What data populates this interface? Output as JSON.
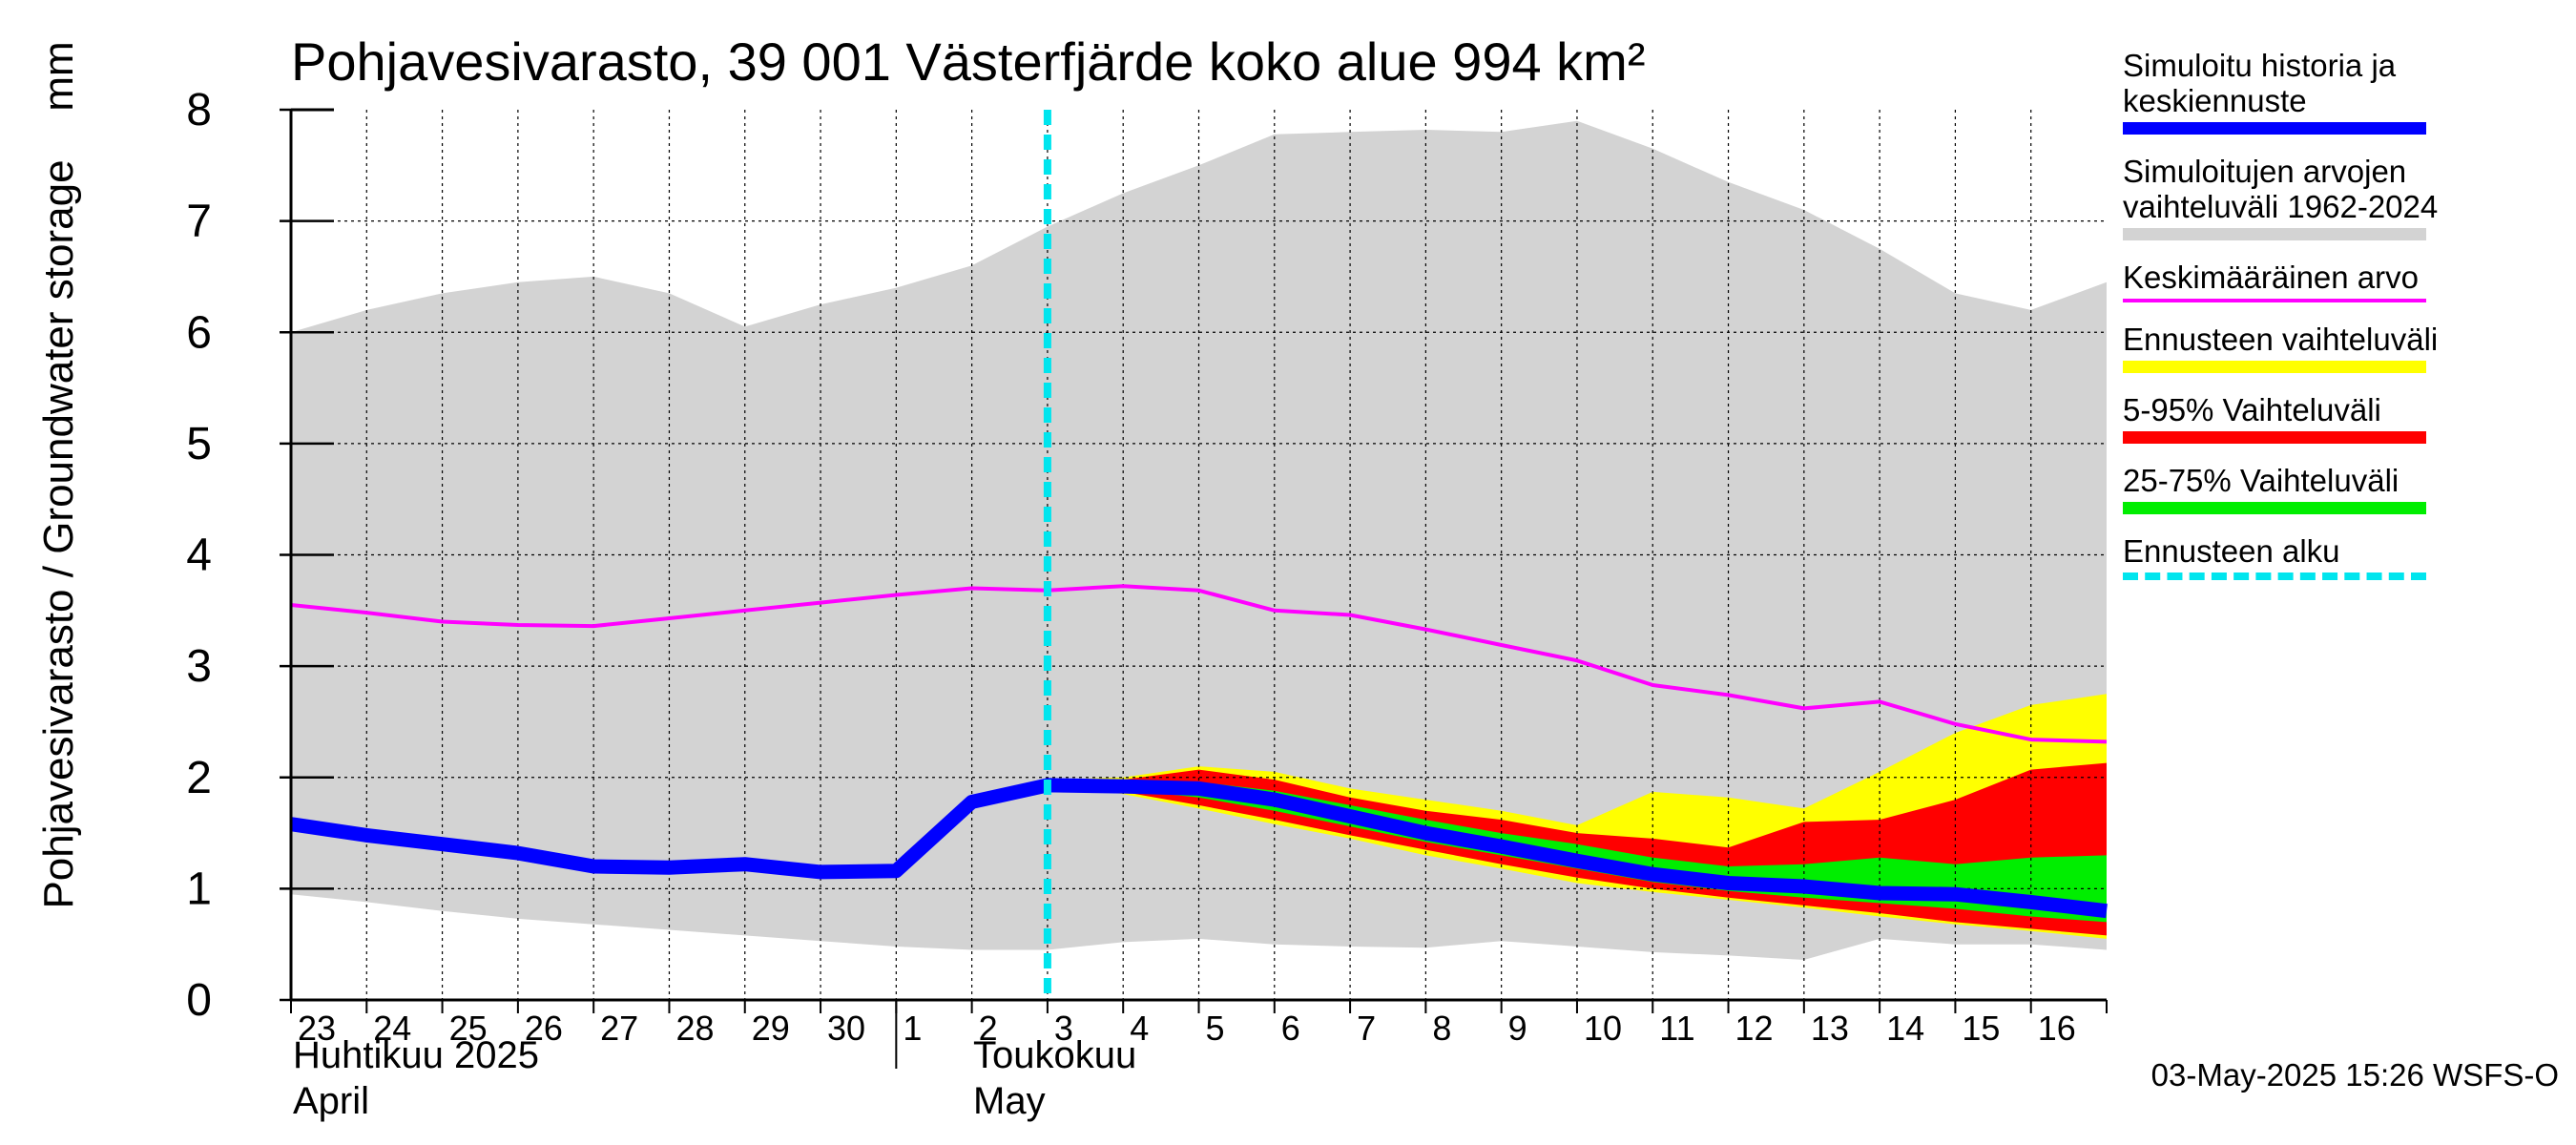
{
  "chart_data": {
    "type": "area",
    "title": "Pohjavesivarasto, 39 001 Västerfjärde koko alue 994 km²",
    "ylabel": "Pohjavesivarasto / Groundwater storage",
    "yunit": "mm",
    "ylim": [
      0,
      8
    ],
    "yticks": [
      0,
      1,
      2,
      3,
      4,
      5,
      6,
      7,
      8
    ],
    "x_dates": [
      "2025-04-23",
      "2025-04-24",
      "2025-04-25",
      "2025-04-26",
      "2025-04-27",
      "2025-04-28",
      "2025-04-29",
      "2025-04-30",
      "2025-05-01",
      "2025-05-02",
      "2025-05-03",
      "2025-05-04",
      "2025-05-05",
      "2025-05-06",
      "2025-05-07",
      "2025-05-08",
      "2025-05-09",
      "2025-05-10",
      "2025-05-11",
      "2025-05-12",
      "2025-05-13",
      "2025-05-14",
      "2025-05-15",
      "2025-05-16",
      "2025-05-17"
    ],
    "day_labels": [
      "23",
      "24",
      "25",
      "26",
      "27",
      "28",
      "29",
      "30",
      "1",
      "2",
      "3",
      "4",
      "5",
      "6",
      "7",
      "8",
      "9",
      "10",
      "11",
      "12",
      "13",
      "14",
      "15",
      "16"
    ],
    "months": [
      {
        "line1": "Huhtikuu  2025",
        "line2": "April"
      },
      {
        "line1": "Toukokuu",
        "line2": "May"
      }
    ],
    "grid": true,
    "legend_position": "right",
    "forecast_start": "2025-05-03",
    "series": [
      {
        "name": "Simuloitujen arvojen vaihteluväli 1962-2024",
        "kind": "band",
        "color": "#d3d3d3",
        "upper": [
          6.0,
          6.2,
          6.35,
          6.45,
          6.5,
          6.35,
          6.05,
          6.25,
          6.4,
          6.6,
          6.95,
          7.25,
          7.5,
          7.78,
          7.8,
          7.82,
          7.8,
          7.9,
          7.65,
          7.35,
          7.1,
          6.75,
          6.35,
          6.2,
          6.45
        ],
        "lower": [
          0.95,
          0.88,
          0.8,
          0.73,
          0.68,
          0.63,
          0.58,
          0.53,
          0.48,
          0.45,
          0.45,
          0.52,
          0.55,
          0.5,
          0.48,
          0.47,
          0.53,
          0.48,
          0.43,
          0.4,
          0.36,
          0.55,
          0.5,
          0.5,
          0.45
        ]
      },
      {
        "name": "Ennusteen vaihteluväli",
        "kind": "band",
        "color": "#ffff00",
        "upper": [
          null,
          null,
          null,
          null,
          null,
          null,
          null,
          null,
          null,
          null,
          1.98,
          2.0,
          2.1,
          2.05,
          1.9,
          1.8,
          1.7,
          1.57,
          1.87,
          1.82,
          1.72,
          2.05,
          2.4,
          2.65,
          2.75
        ],
        "lower": [
          null,
          null,
          null,
          null,
          null,
          null,
          null,
          null,
          null,
          null,
          1.95,
          1.85,
          1.72,
          1.58,
          1.45,
          1.3,
          1.18,
          1.05,
          0.97,
          0.9,
          0.83,
          0.75,
          0.68,
          0.62,
          0.55
        ]
      },
      {
        "name": "5-95% Vaihteluväli",
        "kind": "band",
        "color": "#ff0000",
        "upper": [
          null,
          null,
          null,
          null,
          null,
          null,
          null,
          null,
          null,
          null,
          1.97,
          1.98,
          2.07,
          1.98,
          1.82,
          1.7,
          1.62,
          1.5,
          1.45,
          1.37,
          1.6,
          1.62,
          1.8,
          2.07,
          2.13
        ],
        "lower": [
          null,
          null,
          null,
          null,
          null,
          null,
          null,
          null,
          null,
          null,
          1.95,
          1.87,
          1.75,
          1.62,
          1.48,
          1.35,
          1.22,
          1.1,
          1.0,
          0.92,
          0.85,
          0.78,
          0.7,
          0.64,
          0.58
        ]
      },
      {
        "name": "25-75% Vaihteluväli",
        "kind": "band",
        "color": "#00ee00",
        "upper": [
          null,
          null,
          null,
          null,
          null,
          null,
          null,
          null,
          null,
          null,
          1.96,
          1.94,
          1.96,
          1.88,
          1.75,
          1.62,
          1.5,
          1.4,
          1.28,
          1.2,
          1.22,
          1.28,
          1.22,
          1.28,
          1.3
        ],
        "lower": [
          null,
          null,
          null,
          null,
          null,
          null,
          null,
          null,
          null,
          null,
          1.95,
          1.89,
          1.82,
          1.7,
          1.56,
          1.42,
          1.3,
          1.18,
          1.06,
          0.98,
          0.92,
          0.87,
          0.82,
          0.75,
          0.7
        ]
      },
      {
        "name": "Keskimääräinen arvo",
        "kind": "line",
        "color": "#ff00ff",
        "values": [
          3.55,
          3.48,
          3.4,
          3.37,
          3.36,
          3.43,
          3.5,
          3.57,
          3.64,
          3.7,
          3.68,
          3.72,
          3.68,
          3.5,
          3.46,
          3.33,
          3.19,
          3.05,
          2.83,
          2.74,
          2.62,
          2.68,
          2.48,
          2.34,
          2.32
        ]
      },
      {
        "name": "Simuloitu historia ja keskiennuste",
        "kind": "line",
        "color": "#0000ff",
        "values": [
          1.58,
          1.48,
          1.4,
          1.32,
          1.2,
          1.19,
          1.22,
          1.15,
          1.16,
          1.78,
          1.93,
          1.92,
          1.9,
          1.8,
          1.65,
          1.5,
          1.38,
          1.25,
          1.13,
          1.05,
          1.02,
          0.96,
          0.95,
          0.88,
          0.8
        ]
      }
    ]
  },
  "legend": [
    {
      "text": "Simuloitu historia ja keskiennuste",
      "color": "#0000ff",
      "style": "solid"
    },
    {
      "text": "Simuloitujen arvojen vaihteluväli 1962-2024",
      "color": "#d3d3d3",
      "style": "solid"
    },
    {
      "text": "Keskimääräinen arvo",
      "color": "#ff00ff",
      "style": "thin"
    },
    {
      "text": "Ennusteen vaihteluväli",
      "color": "#ffff00",
      "style": "solid"
    },
    {
      "text": "5-95% Vaihteluväli",
      "color": "#ff0000",
      "style": "solid"
    },
    {
      "text": "25-75% Vaihteluväli",
      "color": "#00ee00",
      "style": "solid"
    },
    {
      "text": "Ennusteen alku",
      "color": "#00e5ee",
      "style": "dashed"
    }
  ],
  "footer": "03-May-2025 15:26 WSFS-O"
}
